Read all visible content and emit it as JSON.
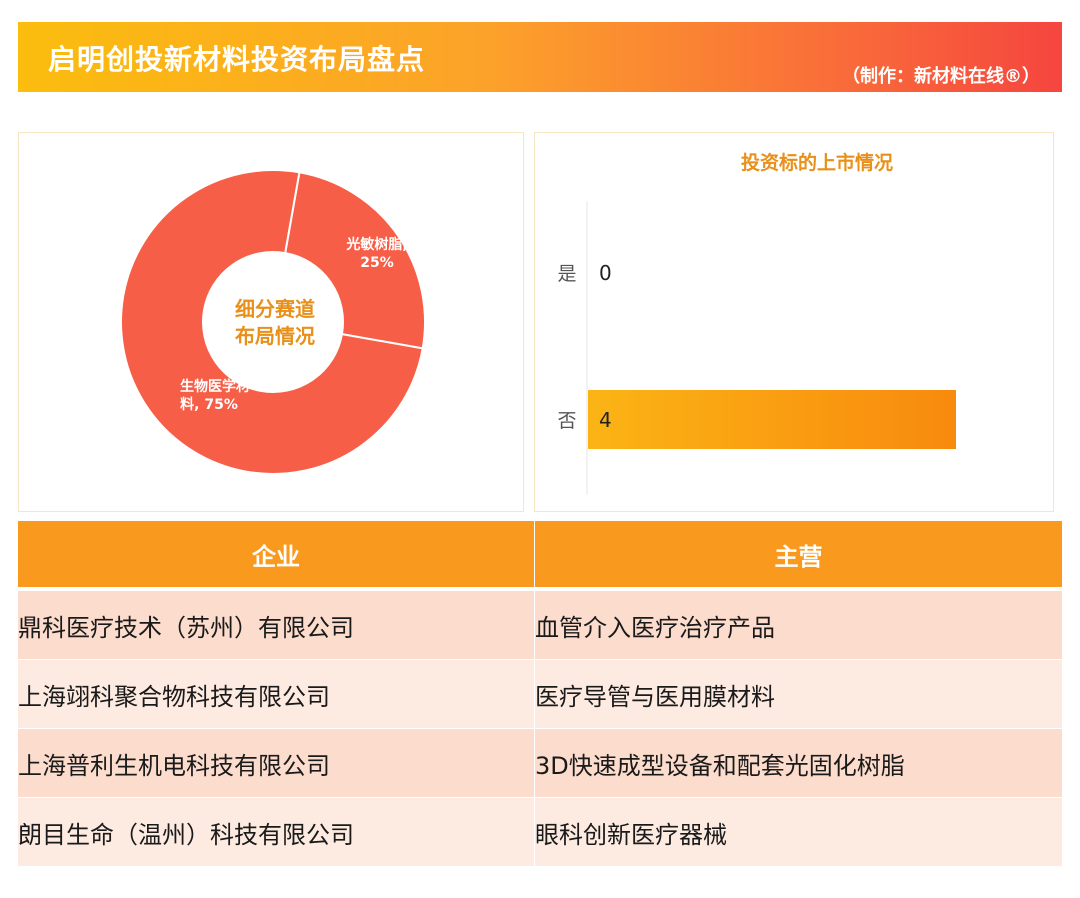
{
  "header": {
    "title": "启明创投新材料投资布局盘点",
    "credit": "（制作：新材料在线®）"
  },
  "colors": {
    "donut": "#f75e47",
    "bar": "#f99a1e",
    "accent_text": "#e8901a",
    "table_header": "#f99a1e",
    "row_dark": "#fcdccd",
    "row_light": "#fdebe2"
  },
  "chart_data": [
    {
      "type": "pie",
      "center_label": [
        "细分赛道",
        "布局情况"
      ],
      "slices": [
        {
          "label": "光敏树脂,",
          "pct_label": "25%",
          "value": 25
        },
        {
          "label": "生物医学材料, 75%",
          "value": 75
        }
      ]
    },
    {
      "type": "bar",
      "orientation": "horizontal",
      "title": "投资标的上市情况",
      "categories": [
        "是",
        "否"
      ],
      "values": [
        0,
        4
      ],
      "xlim": [
        0,
        4
      ]
    }
  ],
  "table": {
    "columns": [
      "企业",
      "主营"
    ],
    "rows": [
      [
        "鼎科医疗技术（苏州）有限公司",
        "血管介入医疗治疗产品"
      ],
      [
        "上海翊科聚合物科技有限公司",
        "医疗导管与医用膜材料"
      ],
      [
        "上海普利生机电科技有限公司",
        "3D快速成型设备和配套光固化树脂"
      ],
      [
        "朗目生命（温州）科技有限公司",
        "眼科创新医疗器械"
      ]
    ]
  }
}
